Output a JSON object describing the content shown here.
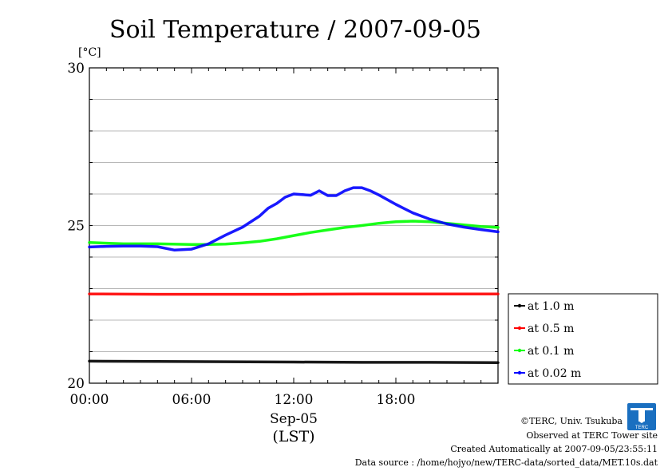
{
  "chart_data": {
    "type": "line",
    "title": "Soil Temperature / 2007-09-05",
    "unit_label": "[°C]",
    "ylim": [
      20,
      30
    ],
    "yticks": [
      {
        "value": 20,
        "label": "20"
      },
      {
        "value": 25,
        "label": "25"
      },
      {
        "value": 30,
        "label": "30"
      }
    ],
    "ygrid_step": 1,
    "xlim": [
      0,
      24
    ],
    "xticks": [
      {
        "value": 0,
        "label": "00:00"
      },
      {
        "value": 6,
        "label": "06:00"
      },
      {
        "value": 12,
        "label": "12:00"
      },
      {
        "value": 18,
        "label": "18:00"
      }
    ],
    "xlabel_date": "Sep-05",
    "xlabel_tz": "(LST)",
    "grid": true,
    "legend_position": "right-bottom",
    "series": [
      {
        "name": "at 1.0 m",
        "color": "#000000",
        "x": [
          0,
          4,
          8,
          12,
          16,
          20,
          24
        ],
        "y": [
          20.7,
          20.69,
          20.68,
          20.67,
          20.66,
          20.66,
          20.65
        ]
      },
      {
        "name": "at 0.5 m",
        "color": "#ff0000",
        "x": [
          0,
          4,
          8,
          12,
          16,
          20,
          24
        ],
        "y": [
          22.83,
          22.82,
          22.82,
          22.82,
          22.83,
          22.83,
          22.83
        ]
      },
      {
        "name": "at 0.1 m",
        "color": "#00ff00",
        "x": [
          0,
          2,
          4,
          6,
          7,
          8,
          9,
          10,
          11,
          12,
          13,
          14,
          15,
          16,
          17,
          18,
          19,
          20,
          21,
          22,
          23,
          24
        ],
        "y": [
          24.46,
          24.42,
          24.42,
          24.4,
          24.4,
          24.41,
          24.45,
          24.5,
          24.58,
          24.68,
          24.78,
          24.86,
          24.94,
          25.0,
          25.07,
          25.12,
          25.14,
          25.12,
          25.07,
          25.02,
          24.97,
          24.94
        ]
      },
      {
        "name": "at 0.02 m",
        "color": "#0000ff",
        "x": [
          0,
          1,
          2,
          3,
          4,
          5,
          6,
          7,
          8,
          9,
          10,
          10.5,
          11,
          11.5,
          12,
          12.5,
          13,
          13.5,
          14,
          14.5,
          15,
          15.5,
          16,
          16.5,
          17,
          18,
          19,
          20,
          21,
          22,
          23,
          24
        ],
        "y": [
          24.32,
          24.34,
          24.35,
          24.35,
          24.33,
          24.22,
          24.25,
          24.42,
          24.7,
          24.95,
          25.3,
          25.55,
          25.7,
          25.9,
          26.0,
          25.98,
          25.96,
          26.1,
          25.95,
          25.95,
          26.1,
          26.2,
          26.2,
          26.1,
          25.97,
          25.67,
          25.4,
          25.2,
          25.05,
          24.95,
          24.87,
          24.8
        ]
      }
    ],
    "legend_order": [
      0,
      1,
      2,
      3
    ]
  },
  "footer": {
    "copyright": "©TERC, Univ. Tsukuba",
    "observed": "Observed at TERC Tower site",
    "created": "Created Automatically at 2007-09-05/23:55:11",
    "source": "Data source : /home/hojyo/new/TERC-data/sorted_data/MET.10s.dat",
    "logo_text": "TERC"
  }
}
